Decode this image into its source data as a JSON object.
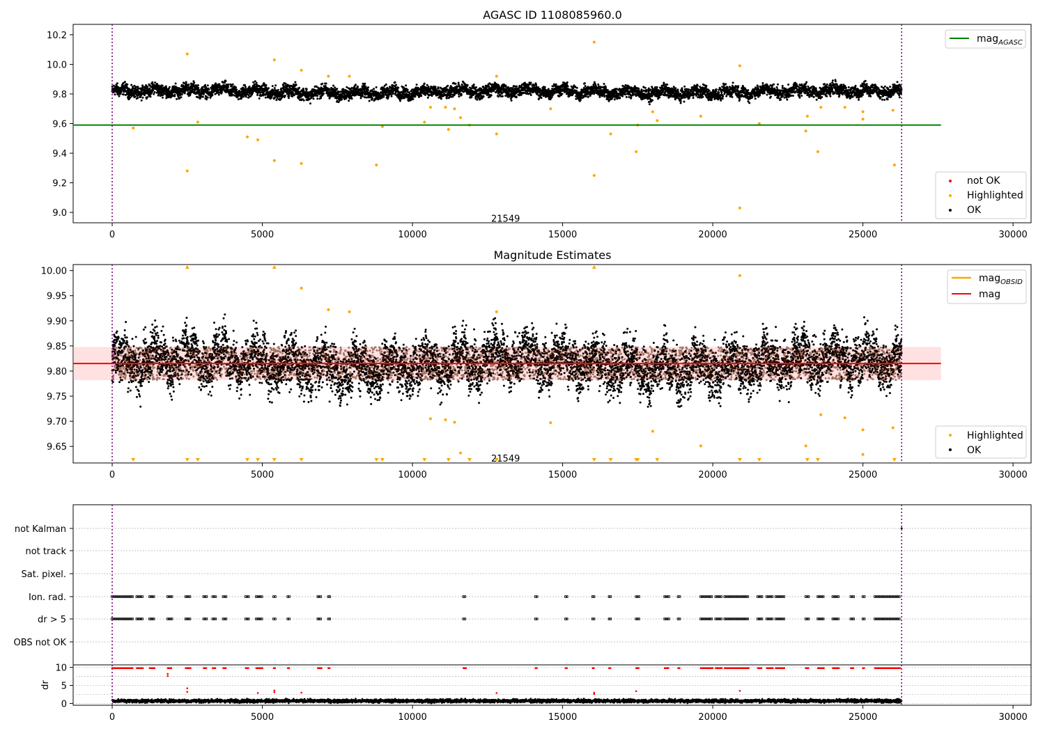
{
  "figure": {
    "panels": [
      "agasc-panel",
      "estimates-panel",
      "flags-panel",
      "dr-panel"
    ]
  },
  "chart_data": [
    {
      "id": "agasc",
      "type": "scatter",
      "title": "AGASC ID 1108085960.0",
      "xlim": [
        -1300,
        30600
      ],
      "ylim": [
        8.93,
        10.27
      ],
      "xticks": [
        0,
        5000,
        10000,
        15000,
        20000,
        25000,
        30000
      ],
      "yticks": [
        9.0,
        9.2,
        9.4,
        9.6,
        9.8,
        10.0,
        10.2
      ],
      "x_span": [
        0,
        26290
      ],
      "vlines": [
        0,
        26290
      ],
      "annotation": {
        "text": "21549",
        "x": 13100,
        "y": 8.96
      },
      "band": {
        "center": 9.815,
        "halfwidth": 0.045,
        "wave_amp": 0.015,
        "noise": 0.03
      },
      "hlines": [
        {
          "name": "mag_AGASC",
          "y": 9.59,
          "x": [
            -1300,
            27600
          ],
          "color": "#008000"
        }
      ],
      "highlighted_points": [
        [
          700,
          9.57
        ],
        [
          2500,
          10.07
        ],
        [
          2500,
          9.28
        ],
        [
          2850,
          9.61
        ],
        [
          4500,
          9.51
        ],
        [
          4850,
          9.49
        ],
        [
          5400,
          10.03
        ],
        [
          5400,
          9.35
        ],
        [
          6300,
          9.96
        ],
        [
          6300,
          9.33
        ],
        [
          7200,
          9.92
        ],
        [
          7900,
          9.92
        ],
        [
          8800,
          9.32
        ],
        [
          9000,
          9.58
        ],
        [
          10400,
          9.61
        ],
        [
          10600,
          9.71
        ],
        [
          11100,
          9.71
        ],
        [
          11200,
          9.56
        ],
        [
          11400,
          9.7
        ],
        [
          11600,
          9.64
        ],
        [
          11900,
          9.59
        ],
        [
          12800,
          9.92
        ],
        [
          12800,
          9.53
        ],
        [
          14600,
          9.7
        ],
        [
          16050,
          10.15
        ],
        [
          16050,
          9.25
        ],
        [
          16600,
          9.53
        ],
        [
          17450,
          9.41
        ],
        [
          17500,
          9.59
        ],
        [
          18000,
          9.68
        ],
        [
          18150,
          9.62
        ],
        [
          19600,
          9.65
        ],
        [
          20900,
          9.99
        ],
        [
          20900,
          9.03
        ],
        [
          21550,
          9.6
        ],
        [
          23100,
          9.55
        ],
        [
          23150,
          9.65
        ],
        [
          23500,
          9.41
        ],
        [
          23600,
          9.71
        ],
        [
          24400,
          9.71
        ],
        [
          25000,
          9.68
        ],
        [
          25000,
          9.63
        ],
        [
          26000,
          9.69
        ],
        [
          26050,
          9.32
        ]
      ],
      "legend_lines": {
        "mag": "mag",
        "sub": "AGASC"
      },
      "legend_points": [
        "not OK",
        "Highlighted",
        "OK"
      ],
      "colors": {
        "ok": "#000000",
        "highlighted": "#ffa500",
        "not_ok": "#ff0000",
        "vline": "#800080"
      }
    },
    {
      "id": "estimates",
      "type": "scatter",
      "title": "Magnitude Estimates",
      "xlim": [
        -1300,
        30600
      ],
      "ylim": [
        9.617,
        10.012
      ],
      "xticks": [
        0,
        5000,
        10000,
        15000,
        20000,
        25000,
        30000
      ],
      "yticks": [
        9.65,
        9.7,
        9.75,
        9.8,
        9.85,
        9.9,
        9.95,
        10.0
      ],
      "x_span": [
        0,
        26290
      ],
      "vlines": [
        0,
        26290
      ],
      "annotation": {
        "text": "21549",
        "x": 13100,
        "y": 9.627
      },
      "band": {
        "center": 9.815,
        "halfwidth": 0.045,
        "wave_amp": 0.02,
        "noise": 0.035
      },
      "mag_line": {
        "y": 9.815,
        "x": [
          -1300,
          27600
        ],
        "color": "#ff0000"
      },
      "mag_band": {
        "low": 9.782,
        "high": 9.848,
        "color": "#ffaaaa"
      },
      "highlighted_points": [
        [
          6300,
          9.965
        ],
        [
          7200,
          9.922
        ],
        [
          7900,
          9.918
        ],
        [
          12800,
          9.918
        ],
        [
          20900,
          9.99
        ],
        [
          10600,
          9.705
        ],
        [
          11100,
          9.703
        ],
        [
          11400,
          9.698
        ],
        [
          11600,
          9.637
        ],
        [
          14600,
          9.697
        ],
        [
          18000,
          9.68
        ],
        [
          19600,
          9.651
        ],
        [
          23100,
          9.651
        ],
        [
          23600,
          9.713
        ],
        [
          24400,
          9.707
        ],
        [
          25000,
          9.683
        ],
        [
          25000,
          9.634
        ],
        [
          26000,
          9.687
        ]
      ],
      "low_markers": [
        700,
        2500,
        2850,
        4500,
        4850,
        5400,
        6300,
        8800,
        9000,
        10400,
        11200,
        11900,
        12800,
        16050,
        16600,
        17450,
        17500,
        18150,
        20900,
        21550,
        23150,
        23500,
        26050
      ],
      "high_markers": [
        2500,
        5400,
        16050
      ],
      "legend_lines": [
        {
          "mag": "mag",
          "sub": "OBSID"
        },
        {
          "mag": "mag",
          "sub": ""
        }
      ],
      "legend_points": [
        "Highlighted",
        "OK"
      ],
      "colors": {
        "ok": "#000000",
        "highlighted": "#ffa500",
        "obsid": "#ffa500",
        "mag": "#ff0000",
        "vline": "#800080"
      }
    },
    {
      "id": "flags",
      "type": "scatter",
      "categories": [
        "not Kalman",
        "not track",
        "Sat. pixel.",
        "Ion. rad.",
        "dr > 5",
        "OBS not OK"
      ],
      "xlim": [
        -1300,
        30600
      ],
      "vlines": [
        0,
        26290
      ],
      "flag_segments": [
        [
          0,
          700
        ],
        [
          820,
          1030
        ],
        [
          1250,
          1420
        ],
        [
          1850,
          2000
        ],
        [
          2450,
          2620
        ],
        [
          3050,
          3150
        ],
        [
          3350,
          3450
        ],
        [
          3700,
          3800
        ],
        [
          4450,
          4550
        ],
        [
          4800,
          5000
        ],
        [
          5380,
          5430
        ],
        [
          5850,
          5900
        ],
        [
          6850,
          6980
        ],
        [
          7200,
          7250
        ],
        [
          11700,
          11780
        ],
        [
          14100,
          14150
        ],
        [
          15100,
          15150
        ],
        [
          16000,
          16050
        ],
        [
          16550,
          16600
        ],
        [
          17450,
          17550
        ],
        [
          18400,
          18550
        ],
        [
          18850,
          18900
        ],
        [
          19600,
          20000
        ],
        [
          20100,
          20300
        ],
        [
          20400,
          21200
        ],
        [
          21500,
          21650
        ],
        [
          21800,
          22000
        ],
        [
          22100,
          22400
        ],
        [
          23100,
          23200
        ],
        [
          23500,
          23700
        ],
        [
          24000,
          24200
        ],
        [
          24600,
          24700
        ],
        [
          25000,
          25050
        ],
        [
          25400,
          26250
        ]
      ],
      "kalman_points": [
        26290
      ],
      "colors": {
        "flag": "#000000",
        "grid": "#b0b0b0",
        "vline": "#800080"
      }
    },
    {
      "id": "dr",
      "type": "scatter",
      "ylabel": "dr",
      "xlim": [
        -1300,
        30600
      ],
      "ylim": [
        -0.5,
        10.7
      ],
      "xticks": [
        0,
        5000,
        10000,
        15000,
        20000,
        25000,
        30000
      ],
      "yticks": [
        0,
        5,
        10
      ],
      "vlines": [
        0,
        26290
      ],
      "red_extras": [
        [
          1850,
          8.2
        ],
        [
          1850,
          7.6
        ],
        [
          2500,
          4.2
        ],
        [
          2500,
          3.2
        ],
        [
          4850,
          2.9
        ],
        [
          5400,
          3.6
        ],
        [
          5400,
          3.1
        ],
        [
          6300,
          3.0
        ],
        [
          12800,
          2.9
        ],
        [
          16050,
          3.0
        ],
        [
          16050,
          2.6
        ],
        [
          17450,
          3.4
        ],
        [
          20900,
          3.5
        ]
      ],
      "colors": {
        "ok": "#000000",
        "not_ok": "#ff0000",
        "vline": "#800080"
      }
    }
  ]
}
